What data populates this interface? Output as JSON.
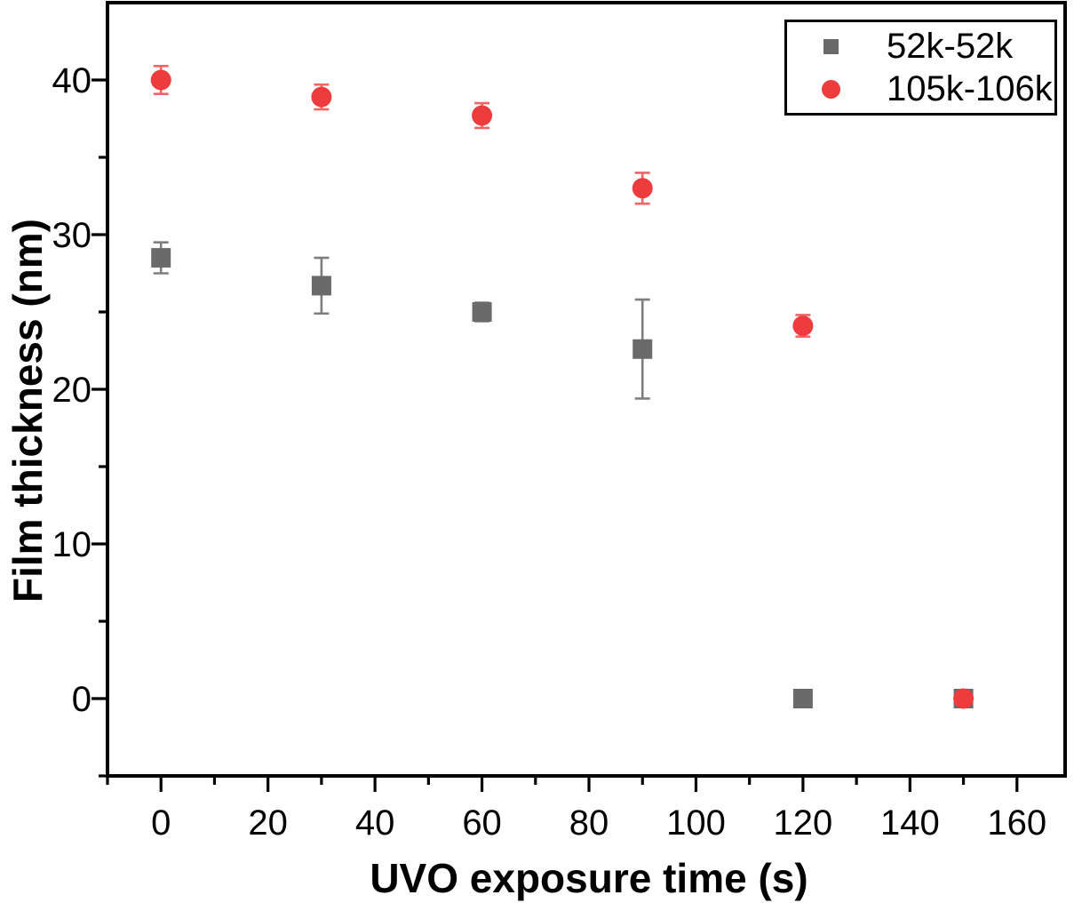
{
  "chart_data": {
    "type": "scatter",
    "title": "",
    "xlabel": "UVO exposure time (s)",
    "ylabel": "Film thickness (nm)",
    "xlim": [
      -10,
      169
    ],
    "ylim": [
      -5,
      45
    ],
    "x_major_ticks": [
      0,
      20,
      40,
      60,
      80,
      100,
      120,
      140,
      160
    ],
    "x_minor_ticks": [
      -10,
      10,
      30,
      50,
      70,
      90,
      110,
      130,
      150
    ],
    "y_major_ticks": [
      0,
      10,
      20,
      30,
      40
    ],
    "y_minor_ticks": [
      -5,
      5,
      15,
      25,
      35
    ],
    "grid": false,
    "legend_position": "top-right",
    "axis_color": "#000000",
    "background": "#ffffff",
    "x": [
      0,
      30,
      60,
      90,
      120,
      150
    ],
    "series": [
      {
        "name": "52k-52k",
        "marker": "square",
        "color": "#6a6a6a",
        "error_color": "#7e7e7e",
        "values": [
          28.5,
          26.7,
          25.0,
          22.6,
          0.0,
          0.0
        ],
        "yerr": [
          1.0,
          1.8,
          0.6,
          3.2,
          0,
          0
        ]
      },
      {
        "name": "105k-106k",
        "marker": "circle",
        "color": "#ee3b3d",
        "error_color": "#f26567",
        "values": [
          40.0,
          38.9,
          37.7,
          33.0,
          24.1,
          0.0
        ],
        "yerr": [
          0.9,
          0.8,
          0.8,
          1.0,
          0.7,
          0
        ]
      }
    ]
  }
}
